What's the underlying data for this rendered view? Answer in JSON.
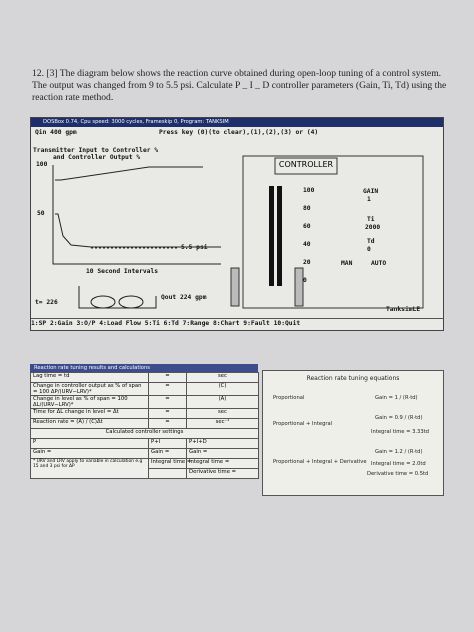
{
  "question": {
    "text": "12. [3] The diagram below shows the reaction curve obtained during open-loop tuning of a control system. The output was changed from 9 to 5.5 psi. Calculate P _ I _ D controller parameters (Gain, Ti, Td) using the reaction rate method."
  },
  "simulator": {
    "window_title": "DOSBox 0.74, Cpu speed:   3000 cycles, Frameskip  0, Program:  TANKSIM",
    "qin": "Qin  400 gpm",
    "prompt": "Press key (0)(to clear),(1),(2),(3) or (4)",
    "chart_title_1": "Transmitter Input to Controller %",
    "chart_title_2": "and Controller Output %",
    "axis_100": "100",
    "axis_50": "50",
    "output_label": "5.5 psi",
    "x_label": "10 Second Intervals",
    "time": "t=  226",
    "qout": "Qout  224 gpm",
    "program": "TanksimLE",
    "menu": "1:SP 2:Gain 3:O/P 4:Load Flow 5:Ti 6:Td 7:Range 8:Chart 9:Fault 10:Quit",
    "controller": {
      "title": "CONTROLLER",
      "scale": [
        "100",
        "80",
        "60",
        "40",
        "20",
        "0"
      ],
      "gain_label": "GAIN",
      "gain": "1",
      "ti_label": "Ti",
      "ti": "2000",
      "td_label": "Td",
      "td": "0",
      "man": "MAN",
      "auto": "AUTO"
    }
  },
  "results_table": {
    "title": "Reaction rate tuning results and calculations",
    "rows": [
      [
        "Lag time = td",
        "=",
        "sec"
      ],
      [
        "Change in controller output as % of span = 100 ΔP/(URV−LRV)*",
        "=",
        "(C)"
      ],
      [
        "Change in level as % of span = 100 ΔL/(URV−LRV)*",
        "=",
        "(A)"
      ],
      [
        "Time for ΔL change in level = Δt",
        "=",
        "sec"
      ],
      [
        "Reaction rate = (A) / (C)Δt",
        "=",
        "sec⁻¹"
      ]
    ],
    "settings_header": "Calculated controller settings",
    "settings": [
      [
        "P",
        "P+I",
        "P+I+D"
      ],
      [
        "Gain =",
        "Gain =",
        "Gain ="
      ]
    ],
    "note": "* URV and LRV apply to variable in calculation e.g 15 and 3 psi for ΔP",
    "pi_integral": "Integral time =",
    "pid_integral": "Integral time =",
    "pid_derivative": "Derivative time ="
  },
  "equations": {
    "title": "Reaction rate tuning equations",
    "p_label": "Proportional",
    "p_gain": "Gain = 1 / (R·td)",
    "pi_label": "Proportional + Integral",
    "pi_gain": "Gain = 0.9 / (R·td)",
    "pi_integral": "Integral time = 3.33td",
    "pid_label": "Proportional + Integral + Derivative",
    "pid_gain": "Gain = 1.2 / (R·td)",
    "pid_integral": "Integral time = 2.0td",
    "pid_derivative": "Derivative time = 0.5td"
  }
}
